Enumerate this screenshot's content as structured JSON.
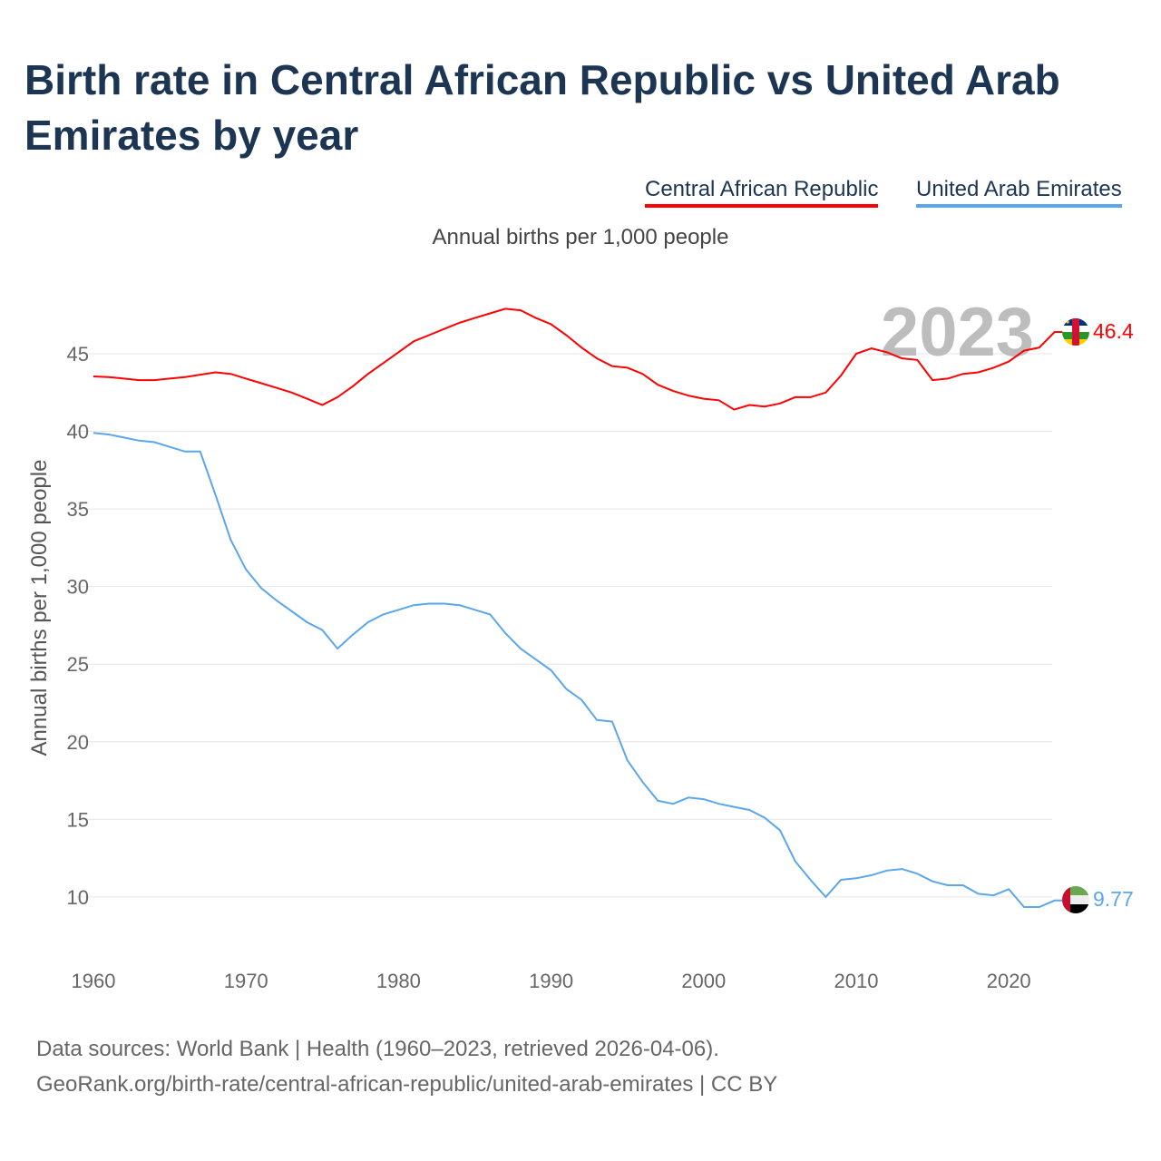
{
  "title": "Birth rate in Central African Republic vs United Arab Emirates by year",
  "subtitle": "Annual births per 1,000 people",
  "footer": {
    "line1": "Data sources: World Bank | Health (1960–2023, retrieved 2026-04-06).",
    "line2": "GeoRank.org/birth-rate/central-african-republic/united-arab-emirates | CC BY"
  },
  "chart_data": {
    "type": "line",
    "title": "Birth rate in Central African Republic vs United Arab Emirates by year",
    "ylabel": "Annual births per 1,000 people",
    "xlabel": "",
    "year_watermark": "2023",
    "xlim": [
      1960,
      2023
    ],
    "ylim": [
      7,
      48
    ],
    "xticks": [
      1960,
      1970,
      1980,
      1990,
      2000,
      2010,
      2020
    ],
    "yticks": [
      10,
      15,
      20,
      25,
      30,
      35,
      40,
      45
    ],
    "grid": true,
    "legend": "top-right",
    "x": [
      1960,
      1961,
      1962,
      1963,
      1964,
      1965,
      1966,
      1967,
      1968,
      1969,
      1970,
      1971,
      1972,
      1973,
      1974,
      1975,
      1976,
      1977,
      1978,
      1979,
      1980,
      1981,
      1982,
      1983,
      1984,
      1985,
      1986,
      1987,
      1988,
      1989,
      1990,
      1991,
      1992,
      1993,
      1994,
      1995,
      1996,
      1997,
      1998,
      1999,
      2000,
      2001,
      2002,
      2003,
      2004,
      2005,
      2006,
      2007,
      2008,
      2009,
      2010,
      2011,
      2012,
      2013,
      2014,
      2015,
      2016,
      2017,
      2018,
      2019,
      2020,
      2021,
      2022,
      2023
    ],
    "series": [
      {
        "name": "Central African Republic",
        "color": "#ff0000",
        "end_label": "46.4",
        "flag": "central-african-republic-flag",
        "values": [
          43.54,
          43.5,
          43.4,
          43.3,
          43.3,
          43.4,
          43.5,
          43.65,
          43.8,
          43.7,
          43.4,
          43.1,
          42.8,
          42.5,
          42.1,
          41.7,
          42.2,
          42.9,
          43.7,
          44.4,
          45.1,
          45.8,
          46.2,
          46.6,
          47.0,
          47.3,
          47.6,
          47.9,
          47.8,
          47.3,
          46.9,
          46.2,
          45.4,
          44.7,
          44.2,
          44.1,
          43.7,
          43.0,
          42.6,
          42.3,
          42.1,
          42.0,
          41.4,
          41.7,
          41.6,
          41.8,
          42.2,
          42.2,
          42.5,
          43.6,
          45.0,
          45.35,
          45.1,
          44.7,
          44.6,
          43.3,
          43.4,
          43.7,
          43.8,
          44.1,
          44.5,
          45.2,
          45.4,
          46.4
        ]
      },
      {
        "name": "United Arab Emirates",
        "color": "#5ba6ec",
        "end_label": "9.77",
        "flag": "united-arab-emirates-flag",
        "values": [
          39.9,
          39.8,
          39.6,
          39.4,
          39.3,
          39.0,
          38.7,
          38.7,
          35.9,
          33.0,
          31.1,
          29.9,
          29.1,
          28.4,
          27.7,
          27.2,
          26.0,
          26.9,
          27.7,
          28.2,
          28.5,
          28.8,
          28.9,
          28.9,
          28.8,
          28.5,
          28.2,
          27.0,
          26.0,
          25.3,
          24.6,
          23.4,
          22.7,
          21.4,
          21.3,
          18.8,
          17.4,
          16.2,
          16.0,
          16.4,
          16.3,
          16.0,
          15.8,
          15.6,
          15.1,
          14.3,
          12.3,
          11.1,
          10.0,
          11.1,
          11.2,
          11.4,
          11.7,
          11.8,
          11.5,
          11.0,
          10.75,
          10.75,
          10.2,
          10.1,
          10.5,
          9.35,
          9.35,
          9.77
        ]
      }
    ]
  }
}
